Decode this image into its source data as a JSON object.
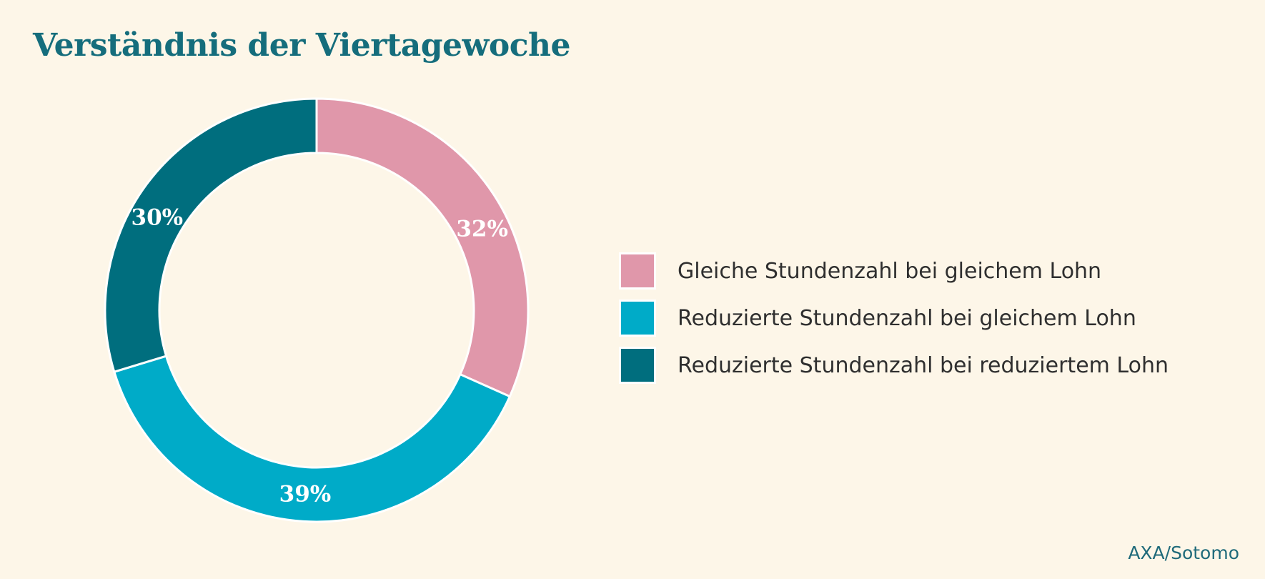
{
  "chart_data": {
    "type": "pie",
    "variant": "donut",
    "title": "Verständnis der Viertagewoche",
    "categories": [
      "Gleiche Stundenzahl bei gleichem Lohn",
      "Reduzierte Stundenzahl bei gleichem Lohn",
      "Reduzierte Stundenzahl bei reduziertem Lohn"
    ],
    "values": [
      32,
      39,
      30
    ],
    "value_labels": [
      "32%",
      "39%",
      "30%"
    ],
    "colors": [
      "#e097aa",
      "#00abc8",
      "#006e7e"
    ],
    "start_angle": "12 o'clock",
    "direction": "clockwise",
    "legend_position": "right"
  },
  "source": "AXA/Sotomo"
}
